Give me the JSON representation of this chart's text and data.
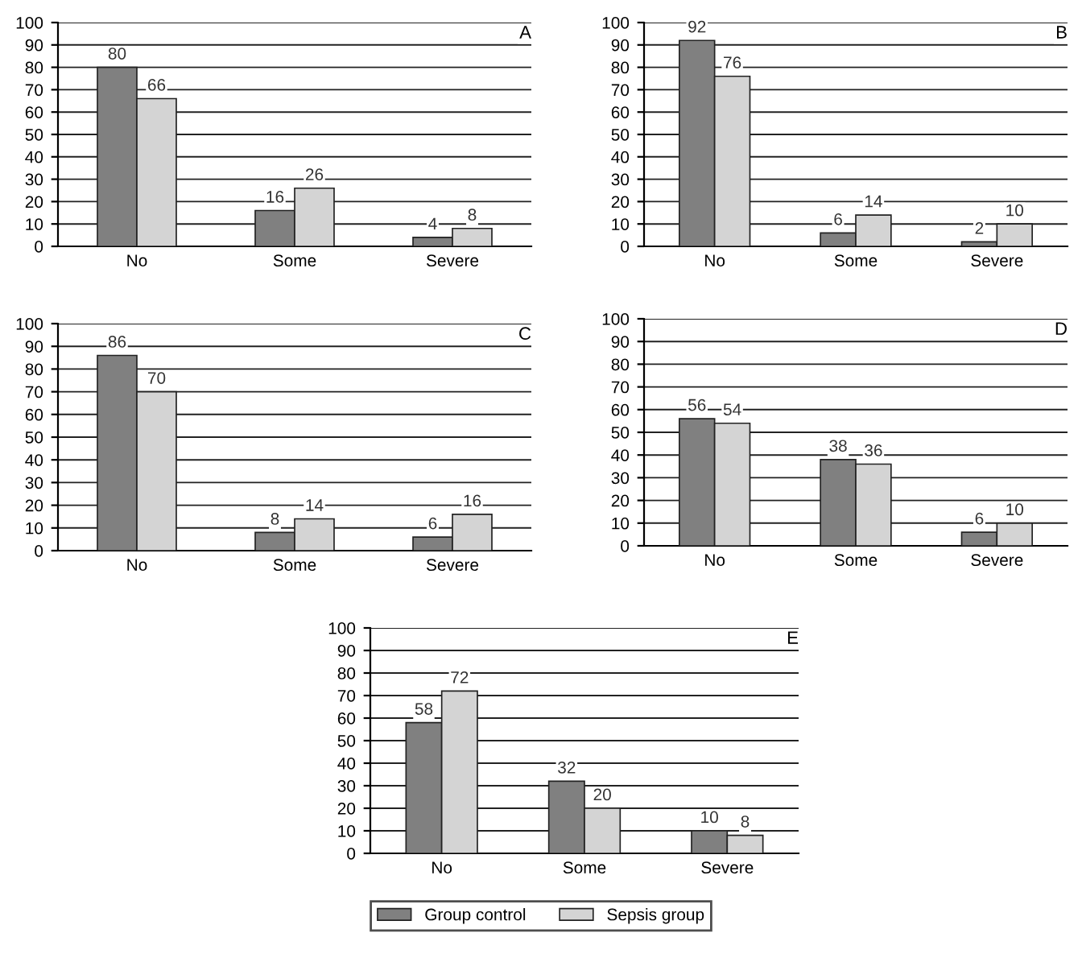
{
  "chart_data": [
    {
      "type": "bar",
      "categories": [
        "No",
        "Some",
        "Severe"
      ],
      "ylim": [
        0,
        100
      ],
      "yticks": [
        0,
        10,
        20,
        30,
        40,
        50,
        60,
        70,
        80,
        90,
        100
      ],
      "grid": "y",
      "data_labels": true,
      "legend": "bottom",
      "annotations": [
        "A"
      ],
      "series": [
        {
          "name": "Group control",
          "color": "#808080",
          "values": [
            80,
            16,
            4
          ]
        },
        {
          "name": "Sepsis group",
          "color": "#d4d4d4",
          "values": [
            66,
            26,
            8
          ]
        }
      ]
    },
    {
      "type": "bar",
      "categories": [
        "No",
        "Some",
        "Severe"
      ],
      "ylim": [
        0,
        100
      ],
      "yticks": [
        0,
        10,
        20,
        30,
        40,
        50,
        60,
        70,
        80,
        90,
        100
      ],
      "grid": "y",
      "data_labels": true,
      "legend": false,
      "annotations": [
        "B"
      ],
      "series": [
        {
          "color": "#808080",
          "values": [
            92,
            6,
            2
          ]
        },
        {
          "color": "#d4d4d4",
          "values": [
            76,
            14,
            10
          ]
        }
      ]
    },
    {
      "type": "bar",
      "categories": [
        "No",
        "Some",
        "Severe"
      ],
      "ylim": [
        0,
        100
      ],
      "yticks": [
        0,
        10,
        20,
        30,
        40,
        50,
        60,
        70,
        80,
        90,
        100
      ],
      "grid": "y",
      "data_labels": true,
      "legend": false,
      "annotations": [
        "C"
      ],
      "series": [
        {
          "color": "#808080",
          "values": [
            86,
            8,
            6
          ]
        },
        {
          "color": "#d4d4d4",
          "values": [
            70,
            14,
            16
          ]
        }
      ]
    },
    {
      "type": "bar",
      "categories": [
        "No",
        "Some",
        "Severe"
      ],
      "ylim": [
        0,
        100
      ],
      "yticks": [
        0,
        10,
        20,
        30,
        40,
        50,
        60,
        70,
        80,
        90,
        100
      ],
      "grid": "y",
      "data_labels": true,
      "legend": false,
      "annotations": [
        "D"
      ],
      "series": [
        {
          "color": "#808080",
          "values": [
            56,
            38,
            6
          ]
        },
        {
          "color": "#d4d4d4",
          "values": [
            54,
            36,
            10
          ]
        }
      ]
    },
    {
      "type": "bar",
      "categories": [
        "No",
        "Some",
        "Severe"
      ],
      "ylim": [
        0,
        100
      ],
      "yticks": [
        0,
        10,
        20,
        30,
        40,
        50,
        60,
        70,
        80,
        90,
        100
      ],
      "grid": "y",
      "data_labels": true,
      "legend": false,
      "annotations": [
        "E"
      ],
      "series": [
        {
          "color": "#808080",
          "values": [
            58,
            32,
            10
          ]
        },
        {
          "color": "#d4d4d4",
          "values": [
            72,
            20,
            8
          ]
        }
      ]
    }
  ]
}
